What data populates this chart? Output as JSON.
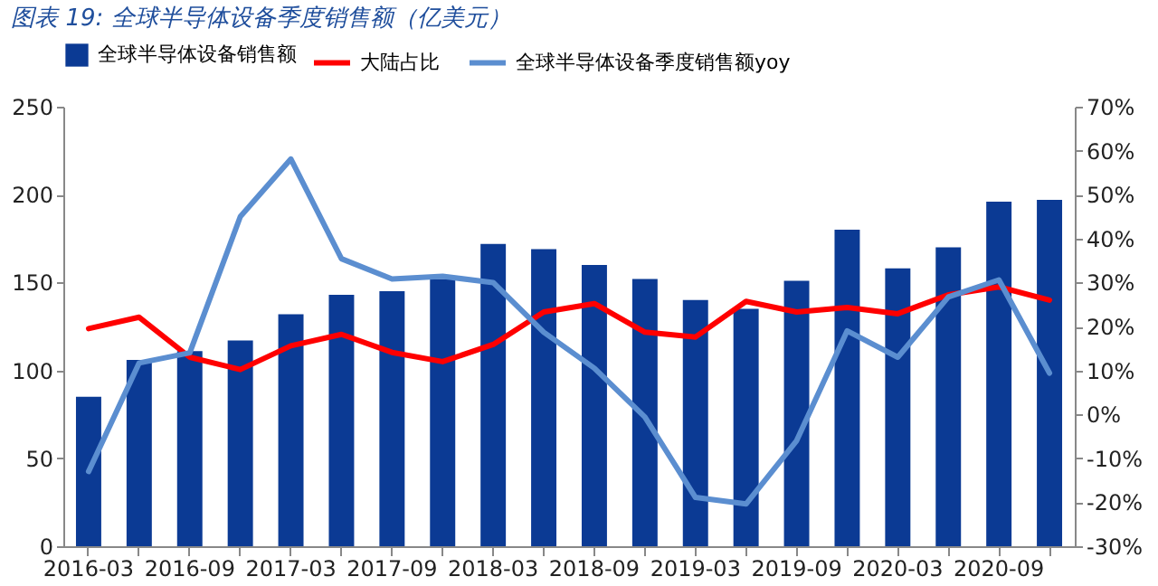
{
  "chart_data": {
    "type": "bar",
    "title": "图表 19:  全球半导体设备季度销售额（亿美元）",
    "categories": [
      "2016-03",
      null,
      "2016-09",
      null,
      "2017-03",
      null,
      "2017-09",
      null,
      "2018-03",
      null,
      "2018-09",
      null,
      "2019-03",
      null,
      "2019-09",
      null,
      "2020-03",
      null,
      "2020-09",
      null
    ],
    "series": [
      {
        "name": "全球半导体设备销售额",
        "color": "#0b3a94",
        "values": [
          85,
          106,
          111,
          117,
          132,
          143,
          145,
          152,
          172,
          169,
          160,
          152,
          140,
          135,
          151,
          180,
          158,
          170,
          196,
          197
        ]
      },
      {
        "name": "大陆占比",
        "type": "line",
        "axis": "y2",
        "color": "#ff0000",
        "values": [
          19.5,
          22.1,
          13,
          10.2,
          15.6,
          18.2,
          14.1,
          12,
          15.9,
          23.3,
          25.2,
          18.7,
          17.6,
          25.7,
          23.3,
          24.3,
          22.9,
          27.2,
          29,
          26
        ]
      },
      {
        "name": "全球半导体设备季度销售额yoy",
        "type": "line",
        "axis": "y2",
        "color": "#5b8ed0",
        "values": [
          -13,
          11.7,
          14,
          45,
          58.1,
          35.4,
          30.8,
          31.4,
          30,
          18.7,
          10.5,
          -0.6,
          -18.9,
          -20.4,
          -6,
          19,
          13,
          26.7,
          30.6,
          9.4
        ]
      }
    ],
    "ylim": [
      0,
      250
    ],
    "yticks": [
      0,
      50,
      100,
      150,
      200,
      250
    ],
    "y2lim": [
      -30,
      70
    ],
    "y2ticks": [
      {
        "value": -30,
        "label": "-30%"
      },
      {
        "value": -20,
        "label": "-20%"
      },
      {
        "value": -10,
        "label": "-10%"
      },
      {
        "value": 0,
        "label": "0%"
      },
      {
        "value": 10,
        "label": "10%"
      },
      {
        "value": 20,
        "label": "20%"
      },
      {
        "value": 30,
        "label": "30%"
      },
      {
        "value": 40,
        "label": "40%"
      },
      {
        "value": 50,
        "label": "50%"
      },
      {
        "value": 60,
        "label": "60%"
      },
      {
        "value": 70,
        "label": "70%"
      }
    ],
    "legend": "top"
  }
}
